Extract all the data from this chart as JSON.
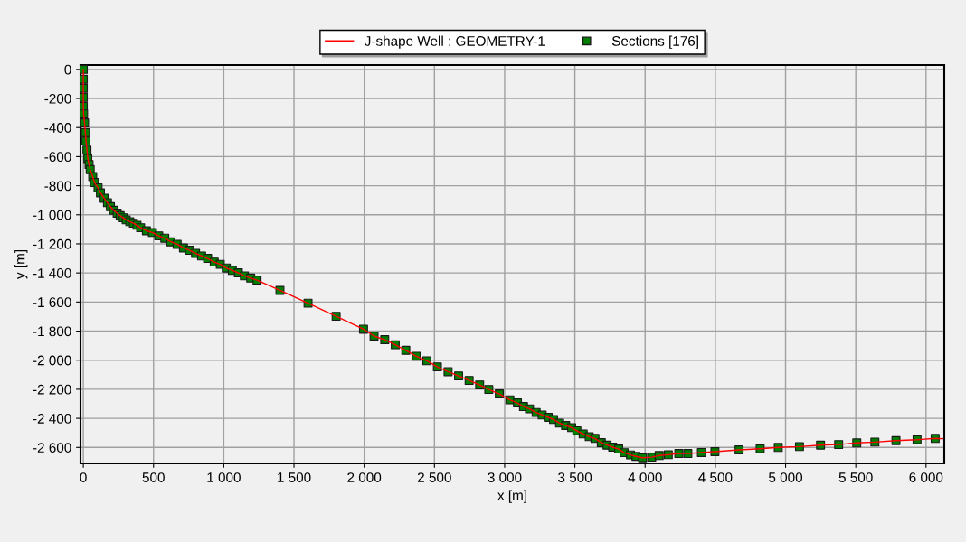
{
  "chart_data": {
    "type": "scatter",
    "xlabel": "x [m]",
    "ylabel": "y [m]",
    "xlim": [
      -20,
      6130
    ],
    "ylim": [
      -2710,
      30
    ],
    "xticks": [
      0,
      500,
      {
        "value": 1000,
        "label": "1 000"
      },
      {
        "value": 1500,
        "label": "1 500"
      },
      {
        "value": 2000,
        "label": "2 000"
      },
      {
        "value": 2500,
        "label": "2 500"
      },
      {
        "value": 3000,
        "label": "3 000"
      },
      {
        "value": 3500,
        "label": "3 500"
      },
      {
        "value": 4000,
        "label": "4 000"
      },
      {
        "value": 4500,
        "label": "4 500"
      },
      {
        "value": 5000,
        "label": "5 000"
      },
      {
        "value": 5500,
        "label": "5 500"
      },
      {
        "value": 6000,
        "label": "6 000"
      }
    ],
    "yticks": [
      0,
      -200,
      -400,
      -600,
      -800,
      {
        "value": -1000,
        "label": "-1 000"
      },
      {
        "value": -1200,
        "label": "-1 200"
      },
      {
        "value": -1400,
        "label": "-1 400"
      },
      {
        "value": -1600,
        "label": "-1 600"
      },
      {
        "value": -1800,
        "label": "-1 800"
      },
      {
        "value": -2000,
        "label": "-2 000"
      },
      {
        "value": -2200,
        "label": "-2 200"
      },
      {
        "value": -2400,
        "label": "-2 400"
      },
      {
        "value": -2600,
        "label": "-2 600"
      }
    ],
    "grid": true,
    "legend": "top",
    "series": [
      {
        "name": "J-shape Well : GEOMETRY-1",
        "type": "line",
        "color": "#ff0000",
        "marker": "none",
        "x": [
          0,
          0,
          0,
          0,
          0,
          2,
          9,
          15,
          19,
          26,
          32,
          41,
          49,
          67,
          79,
          105,
          122,
          148,
          172,
          193,
          215,
          241,
          262,
          284,
          305,
          331,
          357,
          382,
          408,
          449,
          492,
          537,
          580,
          623,
          668,
          713,
          756,
          799,
          842,
          885,
          932,
          975,
          1018,
          1061,
          1104,
          1147,
          1192,
          1237,
          1400,
          1600,
          1800,
          1995,
          2070,
          2146,
          2221,
          2296,
          2371,
          2446,
          2521,
          2597,
          2672,
          2747,
          2822,
          2887,
          2962,
          3037,
          3091,
          3134,
          3177,
          3224,
          3267,
          3310,
          3348,
          3391,
          3434,
          3477,
          3514,
          3559,
          3602,
          3643,
          3688,
          3729,
          3769,
          3812,
          3851,
          3896,
          3935,
          3982,
          4047,
          4100,
          4165,
          4240,
          4304,
          4401,
          4497,
          4669,
          4819,
          4948,
          5099,
          5249,
          5378,
          5507,
          5636,
          5786,
          5936,
          6065,
          6119
        ],
        "values": [
          0,
          -68,
          -130,
          -193,
          -255,
          -306,
          -368,
          -435,
          -493,
          -555,
          -613,
          -654,
          -689,
          -737,
          -778,
          -814,
          -849,
          -886,
          -917,
          -944,
          -969,
          -989,
          -1006,
          -1021,
          -1035,
          -1047,
          -1058,
          -1072,
          -1089,
          -1110,
          -1122,
          -1145,
          -1161,
          -1186,
          -1203,
          -1228,
          -1244,
          -1265,
          -1283,
          -1300,
          -1325,
          -1341,
          -1366,
          -1383,
          -1399,
          -1420,
          -1435,
          -1449,
          -1520,
          -1608,
          -1698,
          -1787,
          -1834,
          -1859,
          -1894,
          -1932,
          -1973,
          -2004,
          -2046,
          -2079,
          -2108,
          -2139,
          -2170,
          -2201,
          -2232,
          -2273,
          -2294,
          -2319,
          -2335,
          -2360,
          -2377,
          -2393,
          -2408,
          -2433,
          -2449,
          -2464,
          -2486,
          -2507,
          -2526,
          -2538,
          -2567,
          -2584,
          -2598,
          -2611,
          -2636,
          -2652,
          -2662,
          -2671,
          -2667,
          -2656,
          -2650,
          -2642,
          -2642,
          -2635,
          -2629,
          -2617,
          -2609,
          -2600,
          -2594,
          -2584,
          -2580,
          -2569,
          -2563,
          -2553,
          -2547,
          -2538,
          -2540
        ]
      },
      {
        "name": "Sections [176]",
        "color": "#008000",
        "marker": "square",
        "x": [
          0,
          0,
          0,
          0,
          0,
          2,
          9,
          15,
          19,
          26,
          32,
          41,
          49,
          67,
          79,
          105,
          122,
          148,
          172,
          193,
          215,
          241,
          262,
          284,
          305,
          331,
          357,
          382,
          408,
          449,
          492,
          537,
          580,
          623,
          668,
          713,
          756,
          799,
          842,
          885,
          932,
          975,
          1018,
          1061,
          1104,
          1147,
          1192,
          1237,
          1400,
          1600,
          1800,
          1995,
          2070,
          2146,
          2221,
          2296,
          2371,
          2446,
          2521,
          2597,
          2672,
          2747,
          2822,
          2887,
          2962,
          3037,
          3091,
          3134,
          3177,
          3224,
          3267,
          3310,
          3348,
          3391,
          3434,
          3477,
          3514,
          3559,
          3602,
          3643,
          3688,
          3729,
          3769,
          3812,
          3851,
          3896,
          3935,
          3982,
          4047,
          4100,
          4165,
          4240,
          4304,
          4401,
          4497,
          4669,
          4819,
          4948,
          5099,
          5249,
          5378,
          5507,
          5636,
          5786,
          5936,
          6065
        ],
        "values": [
          0,
          -68,
          -130,
          -193,
          -255,
          -306,
          -368,
          -435,
          -493,
          -555,
          -613,
          -654,
          -689,
          -737,
          -778,
          -814,
          -849,
          -886,
          -917,
          -944,
          -969,
          -989,
          -1006,
          -1021,
          -1035,
          -1047,
          -1058,
          -1072,
          -1089,
          -1110,
          -1122,
          -1145,
          -1161,
          -1186,
          -1203,
          -1228,
          -1244,
          -1265,
          -1283,
          -1300,
          -1325,
          -1341,
          -1366,
          -1383,
          -1399,
          -1420,
          -1435,
          -1449,
          -1520,
          -1608,
          -1698,
          -1787,
          -1834,
          -1859,
          -1894,
          -1932,
          -1973,
          -2004,
          -2046,
          -2079,
          -2108,
          -2139,
          -2170,
          -2201,
          -2232,
          -2273,
          -2294,
          -2319,
          -2335,
          -2360,
          -2377,
          -2393,
          -2408,
          -2433,
          -2449,
          -2464,
          -2486,
          -2507,
          -2526,
          -2538,
          -2567,
          -2584,
          -2598,
          -2611,
          -2636,
          -2652,
          -2662,
          -2671,
          -2667,
          -2656,
          -2650,
          -2642,
          -2642,
          -2635,
          -2629,
          -2617,
          -2609,
          -2600,
          -2594,
          -2584,
          -2580,
          -2569,
          -2563,
          -2553,
          -2547,
          -2538
        ]
      }
    ]
  }
}
